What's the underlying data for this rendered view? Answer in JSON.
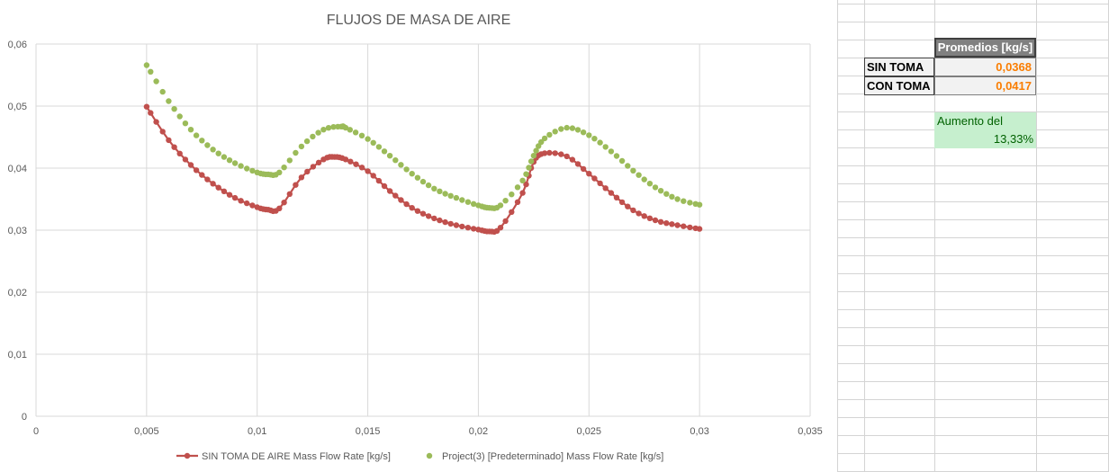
{
  "chart_data": {
    "type": "scatter",
    "title": "FLUJOS DE MASA DE AIRE",
    "xlabel": "",
    "ylabel": "",
    "xlim": [
      0,
      0.035
    ],
    "ylim": [
      0,
      0.06
    ],
    "x_ticks": [
      "0",
      "0,005",
      "0,01",
      "0,015",
      "0,02",
      "0,025",
      "0,03",
      "0,035"
    ],
    "y_ticks": [
      "0",
      "0,01",
      "0,02",
      "0,03",
      "0,04",
      "0,05",
      "0,06"
    ],
    "grid": true,
    "legend_position": "bottom",
    "series": [
      {
        "name": "SIN TOMA DE AIRE Mass Flow Rate [kg/s]",
        "style": "line-with-markers",
        "color": "#c0504d",
        "points": [
          [
            0.005,
            0.0499
          ],
          [
            0.006,
            0.0445
          ],
          [
            0.007,
            0.0405
          ],
          [
            0.008,
            0.0375
          ],
          [
            0.009,
            0.0352
          ],
          [
            0.01,
            0.0337
          ],
          [
            0.0105,
            0.0333
          ],
          [
            0.011,
            0.0335
          ],
          [
            0.012,
            0.0385
          ],
          [
            0.013,
            0.0414
          ],
          [
            0.0135,
            0.0418
          ],
          [
            0.014,
            0.0414
          ],
          [
            0.015,
            0.0395
          ],
          [
            0.016,
            0.0363
          ],
          [
            0.017,
            0.0336
          ],
          [
            0.018,
            0.0319
          ],
          [
            0.019,
            0.0308
          ],
          [
            0.02,
            0.0301
          ],
          [
            0.0205,
            0.0298
          ],
          [
            0.021,
            0.0304
          ],
          [
            0.022,
            0.036
          ],
          [
            0.0225,
            0.041
          ],
          [
            0.023,
            0.0424
          ],
          [
            0.024,
            0.0419
          ],
          [
            0.025,
            0.0391
          ],
          [
            0.026,
            0.036
          ],
          [
            0.027,
            0.0332
          ],
          [
            0.028,
            0.0316
          ],
          [
            0.029,
            0.0308
          ],
          [
            0.03,
            0.0302
          ]
        ]
      },
      {
        "name": "Project(3) [Predeterminado] Mass Flow Rate [kg/s]",
        "style": "markers",
        "color": "#9bbb59",
        "points": [
          [
            0.005,
            0.0566
          ],
          [
            0.006,
            0.0508
          ],
          [
            0.007,
            0.0462
          ],
          [
            0.008,
            0.043
          ],
          [
            0.009,
            0.0408
          ],
          [
            0.01,
            0.0393
          ],
          [
            0.0105,
            0.039
          ],
          [
            0.011,
            0.0393
          ],
          [
            0.012,
            0.0435
          ],
          [
            0.013,
            0.0462
          ],
          [
            0.0138,
            0.0467
          ],
          [
            0.014,
            0.0465
          ],
          [
            0.015,
            0.0447
          ],
          [
            0.016,
            0.042
          ],
          [
            0.017,
            0.0391
          ],
          [
            0.018,
            0.0367
          ],
          [
            0.019,
            0.0352
          ],
          [
            0.02,
            0.034
          ],
          [
            0.0205,
            0.0336
          ],
          [
            0.021,
            0.034
          ],
          [
            0.022,
            0.038
          ],
          [
            0.0225,
            0.042
          ],
          [
            0.023,
            0.0448
          ],
          [
            0.024,
            0.0465
          ],
          [
            0.025,
            0.0453
          ],
          [
            0.026,
            0.0427
          ],
          [
            0.027,
            0.0396
          ],
          [
            0.028,
            0.0369
          ],
          [
            0.029,
            0.035
          ],
          [
            0.03,
            0.0341
          ]
        ]
      }
    ]
  },
  "table": {
    "header": "Promedios [kg/s]",
    "rows": [
      {
        "label": "SIN TOMA",
        "value": "0,0368"
      },
      {
        "label": "CON TOMA",
        "value": "0,0417"
      }
    ],
    "increase_label": "Aumento del",
    "increase_value": "13,33%"
  }
}
